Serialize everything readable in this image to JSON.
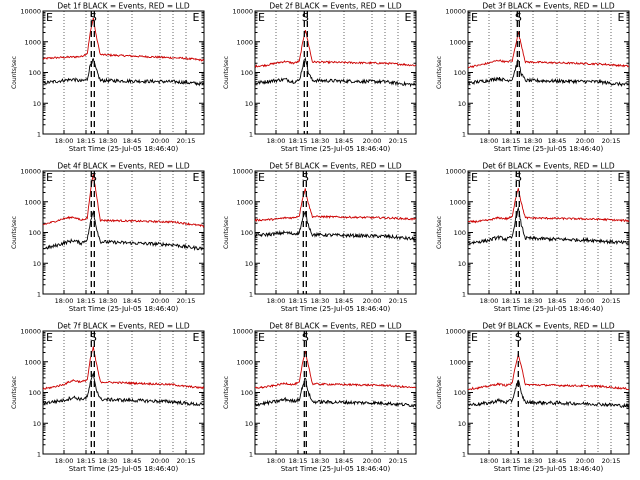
{
  "chart_data": [
    {
      "type": "line",
      "title": "Det 1f BLACK = Events, RED = LLD",
      "xlabel": "Start Time (25-Jul-05 18:46:40)",
      "ylabel": "Counts/sec",
      "yscale": "log",
      "ylim": [
        1,
        10000
      ],
      "xlim": [
        "17:50",
        "20:30"
      ],
      "xticks": [
        "18:00",
        "18:15",
        "18:30",
        "18:45",
        "20:00",
        "20:15"
      ],
      "yticks": [
        "1",
        "10",
        "100",
        "1000",
        "10000"
      ],
      "phase_labels": [
        "E",
        "S",
        "E"
      ],
      "phase_times": [
        "17:50",
        "18:40",
        "20:22"
      ],
      "dashed_times": [
        "18:38",
        "18:41"
      ],
      "grid": "dotted-vertical",
      "series": [
        {
          "color": "#cc0000",
          "x": [
            "17:50",
            "18:00",
            "18:10",
            "18:20",
            "18:28",
            "18:34",
            "18:37",
            "18:40",
            "18:43",
            "18:47",
            "20:00",
            "20:10",
            "20:20",
            "20:30"
          ],
          "values": [
            280,
            300,
            310,
            320,
            330,
            420,
            2000,
            6000,
            1500,
            380,
            300,
            290,
            270,
            250
          ]
        },
        {
          "color": "#000000",
          "x": [
            "17:50",
            "18:00",
            "18:10",
            "18:20",
            "18:28",
            "18:34",
            "18:37",
            "18:40",
            "18:43",
            "18:47",
            "20:00",
            "20:10",
            "20:20",
            "20:30"
          ],
          "values": [
            45,
            50,
            55,
            60,
            52,
            60,
            180,
            260,
            120,
            55,
            50,
            48,
            45,
            42
          ]
        }
      ]
    },
    {
      "type": "line",
      "title": "Det 2f BLACK = Events, RED = LLD",
      "xlabel": "Start Time (25-Jul-05 18:46:40)",
      "ylabel": "Counts/sec",
      "yscale": "log",
      "ylim": [
        1,
        10000
      ],
      "xlim": [
        "17:50",
        "20:30"
      ],
      "xticks": [
        "18:00",
        "18:15",
        "18:30",
        "18:45",
        "20:00",
        "20:15"
      ],
      "yticks": [
        "1",
        "10",
        "100",
        "1000",
        "10000"
      ],
      "phase_labels": [
        "E",
        "S",
        "E"
      ],
      "phase_times": [
        "17:50",
        "18:40",
        "20:22"
      ],
      "dashed_times": [
        "18:39",
        "18:42"
      ],
      "grid": "dotted-vertical",
      "series": [
        {
          "color": "#cc0000",
          "x": [
            "17:50",
            "18:00",
            "18:10",
            "18:20",
            "18:28",
            "18:34",
            "18:37",
            "18:40",
            "18:43",
            "18:47",
            "20:00",
            "20:10",
            "20:20",
            "20:30"
          ],
          "values": [
            160,
            170,
            200,
            230,
            200,
            230,
            800,
            2500,
            900,
            220,
            200,
            190,
            180,
            170
          ]
        },
        {
          "color": "#000000",
          "x": [
            "17:50",
            "18:00",
            "18:10",
            "18:20",
            "18:28",
            "18:34",
            "18:37",
            "18:40",
            "18:43",
            "18:47",
            "20:00",
            "20:10",
            "20:20",
            "20:30"
          ],
          "values": [
            45,
            50,
            55,
            60,
            50,
            55,
            140,
            320,
            100,
            55,
            50,
            45,
            42,
            40
          ]
        }
      ]
    },
    {
      "type": "line",
      "title": "Det 3f BLACK = Events, RED = LLD",
      "xlabel": "Start Time (25-Jul-05 18:46:40)",
      "ylabel": "Counts/sec",
      "yscale": "log",
      "ylim": [
        1,
        10000
      ],
      "xlim": [
        "17:50",
        "20:30"
      ],
      "xticks": [
        "18:00",
        "18:15",
        "18:30",
        "18:45",
        "20:00",
        "20:15"
      ],
      "yticks": [
        "1",
        "10",
        "100",
        "1000",
        "10000"
      ],
      "phase_labels": [
        "E",
        "S",
        "E"
      ],
      "phase_times": [
        "17:50",
        "18:40",
        "20:22"
      ],
      "dashed_times": [
        "18:39",
        "18:41"
      ],
      "grid": "dotted-vertical",
      "series": [
        {
          "color": "#cc0000",
          "x": [
            "17:50",
            "18:00",
            "18:10",
            "18:20",
            "18:28",
            "18:34",
            "18:37",
            "18:40",
            "18:43",
            "18:47",
            "20:00",
            "20:10",
            "20:20",
            "20:30"
          ],
          "values": [
            150,
            170,
            200,
            250,
            220,
            240,
            700,
            2000,
            800,
            220,
            190,
            180,
            170,
            160
          ]
        },
        {
          "color": "#000000",
          "x": [
            "17:50",
            "18:00",
            "18:10",
            "18:20",
            "18:28",
            "18:34",
            "18:37",
            "18:40",
            "18:43",
            "18:47",
            "20:00",
            "20:10",
            "20:20",
            "20:30"
          ],
          "values": [
            45,
            50,
            55,
            65,
            55,
            60,
            130,
            260,
            90,
            55,
            50,
            45,
            42,
            40
          ]
        }
      ]
    },
    {
      "type": "line",
      "title": "Det 4f BLACK = Events, RED = LLD",
      "xlabel": "Start Time (25-Jul-05 18:46:40)",
      "ylabel": "Counts/sec",
      "yscale": "log",
      "ylim": [
        1,
        10000
      ],
      "xlim": [
        "17:50",
        "20:30"
      ],
      "xticks": [
        "18:00",
        "18:15",
        "18:30",
        "18:45",
        "20:00",
        "20:15"
      ],
      "yticks": [
        "1",
        "10",
        "100",
        "1000",
        "10000"
      ],
      "phase_labels": [
        "E",
        "S",
        "E"
      ],
      "phase_times": [
        "17:50",
        "18:40",
        "20:22"
      ],
      "dashed_times": [
        "18:38",
        "18:41"
      ],
      "grid": "dotted-vertical",
      "series": [
        {
          "color": "#cc0000",
          "x": [
            "17:50",
            "18:00",
            "18:10",
            "18:20",
            "18:28",
            "18:34",
            "18:37",
            "18:40",
            "18:43",
            "18:47",
            "20:00",
            "20:10",
            "20:20",
            "20:30"
          ],
          "values": [
            180,
            220,
            280,
            320,
            250,
            300,
            2000,
            8000,
            1800,
            250,
            220,
            200,
            180,
            160
          ]
        },
        {
          "color": "#000000",
          "x": [
            "17:50",
            "18:00",
            "18:10",
            "18:20",
            "18:28",
            "18:34",
            "18:37",
            "18:40",
            "18:43",
            "18:47",
            "20:00",
            "20:10",
            "20:20",
            "20:30"
          ],
          "values": [
            30,
            35,
            45,
            55,
            45,
            60,
            200,
            500,
            150,
            50,
            40,
            35,
            32,
            30
          ]
        }
      ]
    },
    {
      "type": "line",
      "title": "Det 5f BLACK = Events, RED = LLD",
      "xlabel": "Start Time (25-Jul-05 18:46:40)",
      "ylabel": "Counts/sec",
      "yscale": "log",
      "ylim": [
        1,
        10000
      ],
      "xlim": [
        "17:50",
        "20:30"
      ],
      "xticks": [
        "18:00",
        "18:15",
        "18:30",
        "18:45",
        "20:00",
        "20:15"
      ],
      "yticks": [
        "1",
        "10",
        "100",
        "1000",
        "10000"
      ],
      "phase_labels": [
        "E",
        "S",
        "E"
      ],
      "phase_times": [
        "17:50",
        "18:40",
        "20:22"
      ],
      "dashed_times": [
        "18:38",
        "18:41"
      ],
      "grid": "dotted-vertical",
      "series": [
        {
          "color": "#cc0000",
          "x": [
            "17:50",
            "18:00",
            "18:10",
            "18:20",
            "18:28",
            "18:34",
            "18:37",
            "18:40",
            "18:43",
            "18:47",
            "20:00",
            "20:10",
            "20:20",
            "20:30"
          ],
          "values": [
            250,
            260,
            270,
            300,
            300,
            350,
            1200,
            2600,
            900,
            330,
            300,
            290,
            280,
            270
          ]
        },
        {
          "color": "#000000",
          "x": [
            "17:50",
            "18:00",
            "18:10",
            "18:20",
            "18:28",
            "18:34",
            "18:37",
            "18:40",
            "18:43",
            "18:47",
            "20:00",
            "20:10",
            "20:20",
            "20:30"
          ],
          "values": [
            80,
            85,
            90,
            100,
            90,
            100,
            250,
            450,
            180,
            85,
            75,
            70,
            65,
            60
          ]
        }
      ]
    },
    {
      "type": "line",
      "title": "Det 6f BLACK = Events, RED = LLD",
      "xlabel": "Start Time (25-Jul-05 18:46:40)",
      "ylabel": "Counts/sec",
      "yscale": "log",
      "ylim": [
        1,
        10000
      ],
      "xlim": [
        "17:50",
        "20:30"
      ],
      "xticks": [
        "18:00",
        "18:15",
        "18:30",
        "18:45",
        "20:00",
        "20:15"
      ],
      "yticks": [
        "1",
        "10",
        "100",
        "1000",
        "10000"
      ],
      "phase_labels": [
        "E",
        "S",
        "E"
      ],
      "phase_times": [
        "17:50",
        "18:40",
        "20:22"
      ],
      "dashed_times": [
        "18:38",
        "18:41"
      ],
      "grid": "dotted-vertical",
      "series": [
        {
          "color": "#cc0000",
          "x": [
            "17:50",
            "18:00",
            "18:10",
            "18:20",
            "18:28",
            "18:34",
            "18:37",
            "18:40",
            "18:43",
            "18:47",
            "20:00",
            "20:10",
            "20:20",
            "20:30"
          ],
          "values": [
            220,
            230,
            250,
            300,
            280,
            320,
            1200,
            2800,
            900,
            300,
            270,
            260,
            250,
            240
          ]
        },
        {
          "color": "#000000",
          "x": [
            "17:50",
            "18:00",
            "18:10",
            "18:20",
            "18:28",
            "18:34",
            "18:37",
            "18:40",
            "18:43",
            "18:47",
            "20:00",
            "20:10",
            "20:20",
            "20:30"
          ],
          "values": [
            45,
            50,
            55,
            70,
            60,
            70,
            250,
            600,
            180,
            65,
            55,
            50,
            48,
            45
          ]
        }
      ]
    },
    {
      "type": "line",
      "title": "Det 7f BLACK = Events, RED = LLD",
      "xlabel": "Start Time (25-Jul-05 18:46:40)",
      "ylabel": "Counts/sec",
      "yscale": "log",
      "ylim": [
        1,
        10000
      ],
      "xlim": [
        "17:50",
        "20:30"
      ],
      "xticks": [
        "18:00",
        "18:15",
        "18:30",
        "18:45",
        "20:00",
        "20:15"
      ],
      "yticks": [
        "1",
        "10",
        "100",
        "1000",
        "10000"
      ],
      "phase_labels": [
        "E",
        "S",
        "E"
      ],
      "phase_times": [
        "17:50",
        "18:40",
        "20:22"
      ],
      "dashed_times": [
        "18:38",
        "18:41"
      ],
      "grid": "dotted-vertical",
      "series": [
        {
          "color": "#cc0000",
          "x": [
            "17:50",
            "18:00",
            "18:10",
            "18:20",
            "18:28",
            "18:34",
            "18:37",
            "18:40",
            "18:43",
            "18:47",
            "20:00",
            "20:10",
            "20:20",
            "20:30"
          ],
          "values": [
            130,
            150,
            180,
            250,
            220,
            260,
            1200,
            3000,
            900,
            220,
            180,
            160,
            150,
            140
          ]
        },
        {
          "color": "#000000",
          "x": [
            "17:50",
            "18:00",
            "18:10",
            "18:20",
            "18:28",
            "18:34",
            "18:37",
            "18:40",
            "18:43",
            "18:47",
            "20:00",
            "20:10",
            "20:20",
            "20:30"
          ],
          "values": [
            45,
            50,
            55,
            70,
            60,
            70,
            200,
            400,
            130,
            60,
            50,
            45,
            42,
            40
          ]
        }
      ]
    },
    {
      "type": "line",
      "title": "Det 8f BLACK = Events, RED = LLD",
      "xlabel": "Start Time (25-Jul-05 18:46:40)",
      "ylabel": "Counts/sec",
      "yscale": "log",
      "ylim": [
        1,
        10000
      ],
      "xlim": [
        "17:50",
        "20:30"
      ],
      "xticks": [
        "18:00",
        "18:15",
        "18:30",
        "18:45",
        "20:00",
        "20:15"
      ],
      "yticks": [
        "1",
        "10",
        "100",
        "1000",
        "10000"
      ],
      "phase_labels": [
        "E",
        "S",
        "E"
      ],
      "phase_times": [
        "17:50",
        "18:40",
        "20:22"
      ],
      "dashed_times": [
        "18:39",
        "18:41"
      ],
      "grid": "dotted-vertical",
      "series": [
        {
          "color": "#cc0000",
          "x": [
            "17:50",
            "18:00",
            "18:10",
            "18:20",
            "18:28",
            "18:34",
            "18:37",
            "18:40",
            "18:43",
            "18:47",
            "20:00",
            "20:10",
            "20:20",
            "20:30"
          ],
          "values": [
            140,
            150,
            170,
            200,
            180,
            210,
            800,
            2200,
            800,
            190,
            170,
            160,
            150,
            140
          ]
        },
        {
          "color": "#000000",
          "x": [
            "17:50",
            "18:00",
            "18:10",
            "18:20",
            "18:28",
            "18:34",
            "18:37",
            "18:40",
            "18:43",
            "18:47",
            "20:00",
            "20:10",
            "20:20",
            "20:30"
          ],
          "values": [
            40,
            45,
            50,
            60,
            52,
            60,
            150,
            300,
            100,
            50,
            45,
            42,
            40,
            38
          ]
        }
      ]
    },
    {
      "type": "line",
      "title": "Det 9f BLACK = Events, RED = LLD",
      "xlabel": "Start Time (25-Jul-05 18:46:40)",
      "ylabel": "Counts/sec",
      "yscale": "log",
      "ylim": [
        1,
        10000
      ],
      "xlim": [
        "17:50",
        "20:30"
      ],
      "xticks": [
        "18:00",
        "18:15",
        "18:30",
        "18:45",
        "20:00",
        "20:15"
      ],
      "yticks": [
        "1",
        "10",
        "100",
        "1000",
        "10000"
      ],
      "phase_labels": [
        "E",
        "S",
        "E"
      ],
      "phase_times": [
        "17:50",
        "18:40",
        "20:22"
      ],
      "dashed_times": [
        "18:40"
      ],
      "grid": "dotted-vertical",
      "series": [
        {
          "color": "#cc0000",
          "x": [
            "17:50",
            "18:00",
            "18:10",
            "18:20",
            "18:28",
            "18:34",
            "18:37",
            "18:40",
            "18:43",
            "18:47",
            "20:00",
            "20:10",
            "20:20",
            "20:30"
          ],
          "values": [
            130,
            140,
            160,
            190,
            170,
            200,
            700,
            1800,
            700,
            180,
            160,
            150,
            140,
            130
          ]
        },
        {
          "color": "#000000",
          "x": [
            "17:50",
            "18:00",
            "18:10",
            "18:20",
            "18:28",
            "18:34",
            "18:37",
            "18:40",
            "18:43",
            "18:47",
            "20:00",
            "20:10",
            "20:20",
            "20:30"
          ],
          "values": [
            40,
            42,
            45,
            55,
            48,
            55,
            130,
            260,
            90,
            48,
            42,
            40,
            38,
            36
          ]
        }
      ]
    }
  ]
}
